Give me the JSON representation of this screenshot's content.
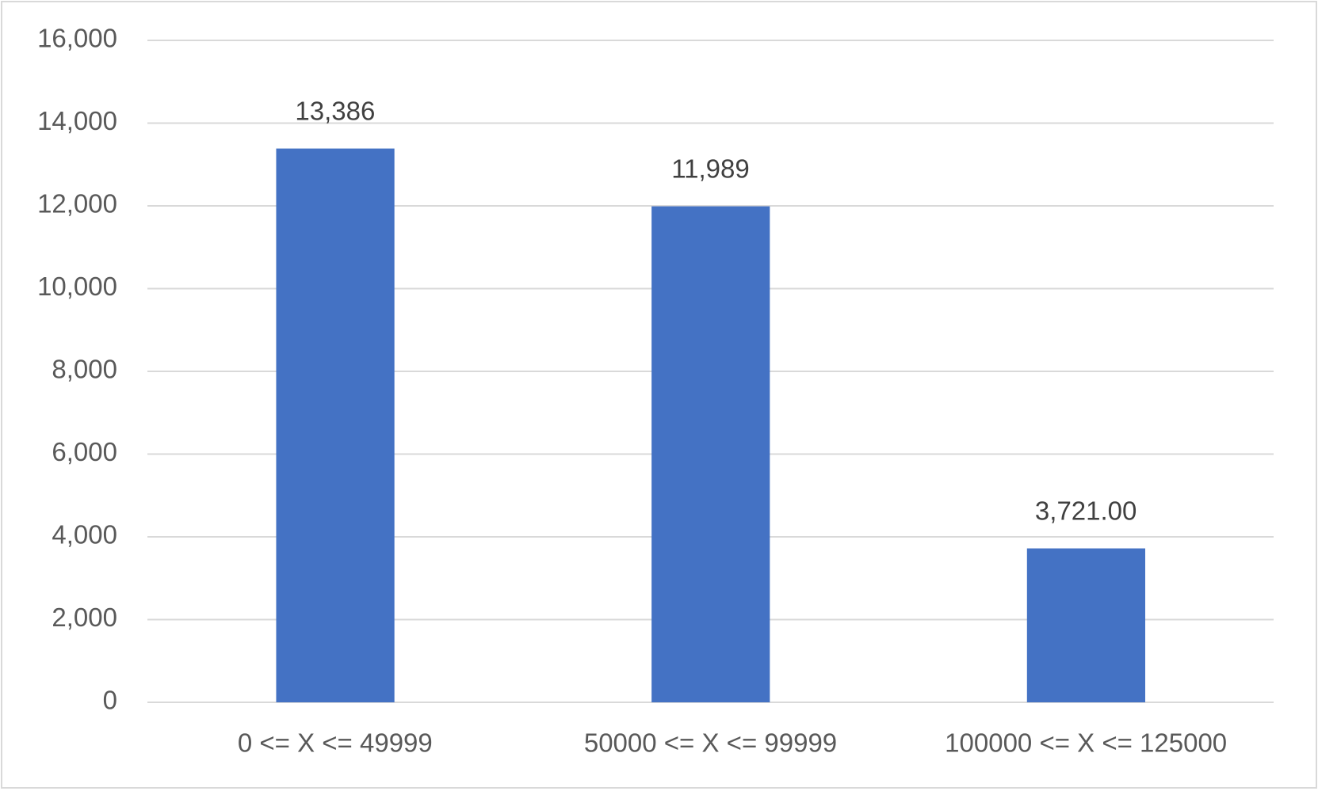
{
  "chart_data": {
    "type": "bar",
    "categories": [
      "0 <= X <= 49999",
      "50000 <= X <= 99999",
      "100000 <= X <= 125000"
    ],
    "values": [
      13386,
      11989,
      3721
    ],
    "value_labels": [
      "13,386",
      "11,989",
      "3,721.00"
    ],
    "color": "#4472c4",
    "ylim": [
      0,
      16000
    ],
    "yticks": [
      0,
      {
        "value": 2000,
        "label": "2,000"
      },
      {
        "value": 4000,
        "label": "4,000"
      },
      {
        "value": 6000,
        "label": "6,000"
      },
      {
        "value": 8000,
        "label": "8,000"
      },
      {
        "value": 10000,
        "label": "10,000"
      },
      {
        "value": 12000,
        "label": "12,000"
      },
      {
        "value": 14000,
        "label": "14,000"
      },
      {
        "value": 16000,
        "label": "16,000"
      }
    ],
    "grid": true
  }
}
